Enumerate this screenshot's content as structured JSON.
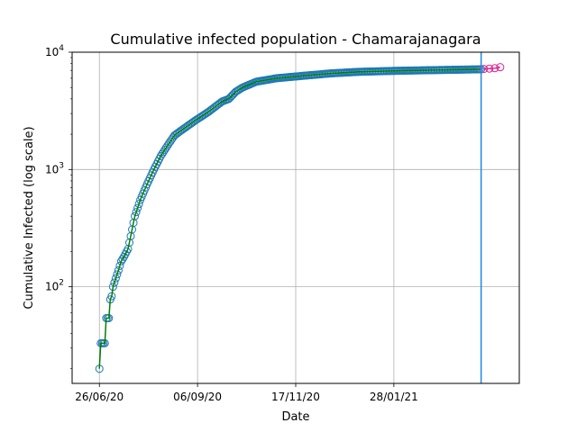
{
  "chart_data": {
    "type": "scatter",
    "title": "Cumulative infected population - Chamarajanagara",
    "xlabel": "Date",
    "ylabel": "Cumulative Infected (log scale)",
    "yscale": "log",
    "x_ticks": [
      "26/06/20",
      "06/09/20",
      "17/11/20",
      "28/01/21"
    ],
    "x_tick_days": [
      0,
      72,
      144,
      216
    ],
    "xlim_days": [
      -20,
      308
    ],
    "ylim": [
      15,
      10000
    ],
    "y_ticks": [
      {
        "value": 100,
        "base": "10",
        "exp": "2"
      },
      {
        "value": 1000,
        "base": "10",
        "exp": "3"
      },
      {
        "value": 10000,
        "base": "10",
        "exp": "4"
      }
    ],
    "grid": true,
    "vertical_line_day": 280,
    "colors": {
      "observed_marker": "#1f77b4",
      "fit_line": "#008000",
      "forecast_line": "#e0208c",
      "vline": "#1f88e5"
    },
    "observed_anchors": [
      [
        0,
        20
      ],
      [
        1,
        33
      ],
      [
        4,
        33
      ],
      [
        5,
        54
      ],
      [
        7,
        54
      ],
      [
        8,
        78
      ],
      [
        9,
        83
      ],
      [
        10,
        100
      ],
      [
        12,
        118
      ],
      [
        14,
        138
      ],
      [
        16,
        165
      ],
      [
        18,
        180
      ],
      [
        21,
        210
      ],
      [
        23,
        270
      ],
      [
        26,
        400
      ],
      [
        30,
        550
      ],
      [
        35,
        750
      ],
      [
        40,
        1000
      ],
      [
        45,
        1300
      ],
      [
        50,
        1600
      ],
      [
        55,
        1950
      ],
      [
        60,
        2150
      ],
      [
        70,
        2600
      ],
      [
        80,
        3100
      ],
      [
        90,
        3800
      ],
      [
        95,
        4000
      ],
      [
        100,
        4600
      ],
      [
        105,
        5000
      ],
      [
        115,
        5600
      ],
      [
        130,
        6000
      ],
      [
        150,
        6300
      ],
      [
        170,
        6600
      ],
      [
        190,
        6800
      ],
      [
        220,
        6950
      ],
      [
        250,
        7050
      ],
      [
        280,
        7150
      ]
    ],
    "forecast_points": [
      [
        282,
        7200
      ],
      [
        286,
        7250
      ],
      [
        290,
        7300
      ],
      [
        294,
        7450
      ]
    ]
  }
}
